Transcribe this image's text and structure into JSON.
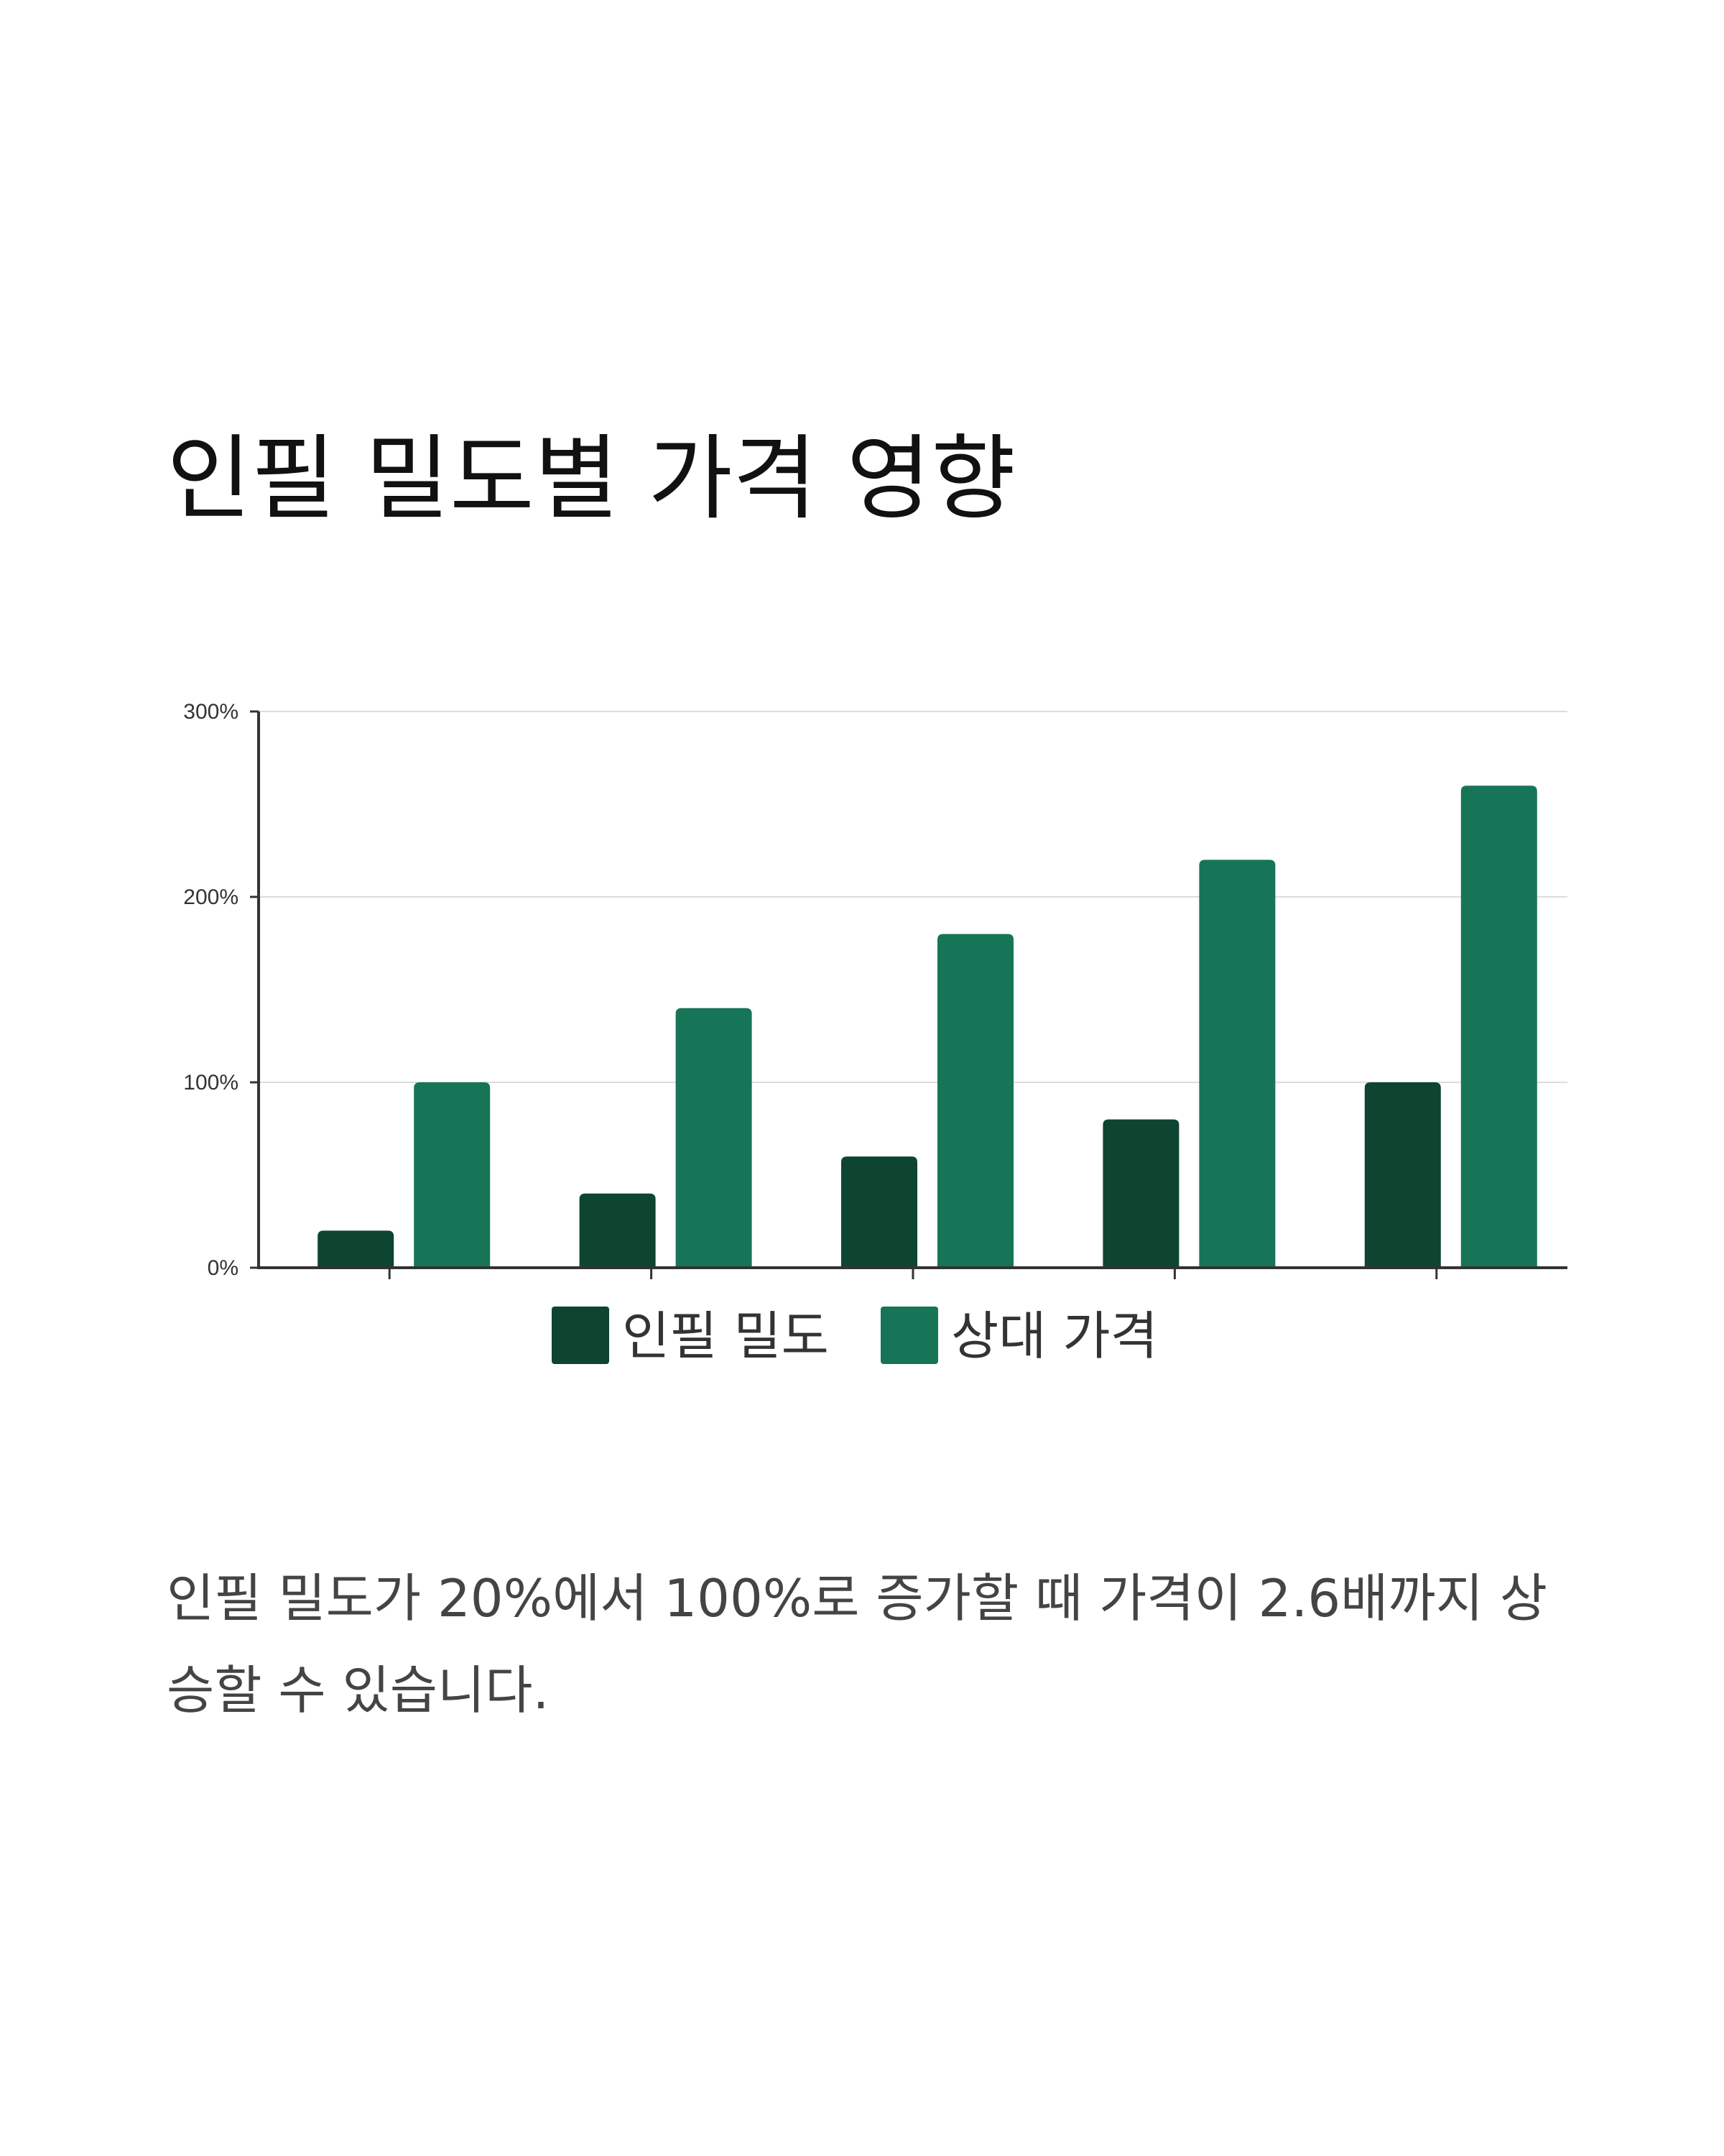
{
  "title": "인필 밀도별 가격 영향",
  "caption": "인필 밀도가 20%에서 100%로 증가할 때 가격이 2.6배까지 상승할 수 있습니다.",
  "chart_data": {
    "type": "bar",
    "categories": [
      "",
      "",
      "",
      "",
      ""
    ],
    "series": [
      {
        "name": "인필 밀도",
        "values": [
          20,
          40,
          60,
          80,
          100
        ],
        "color": "#0d4530"
      },
      {
        "name": "상대 가격",
        "values": [
          100,
          140,
          180,
          220,
          260
        ],
        "color": "#167556"
      }
    ],
    "ylim": [
      0,
      300
    ],
    "yticks": [
      "0%",
      "100%",
      "200%",
      "300%"
    ],
    "grid": true,
    "legend_position": "bottom",
    "xlabel": "",
    "ylabel": ""
  }
}
